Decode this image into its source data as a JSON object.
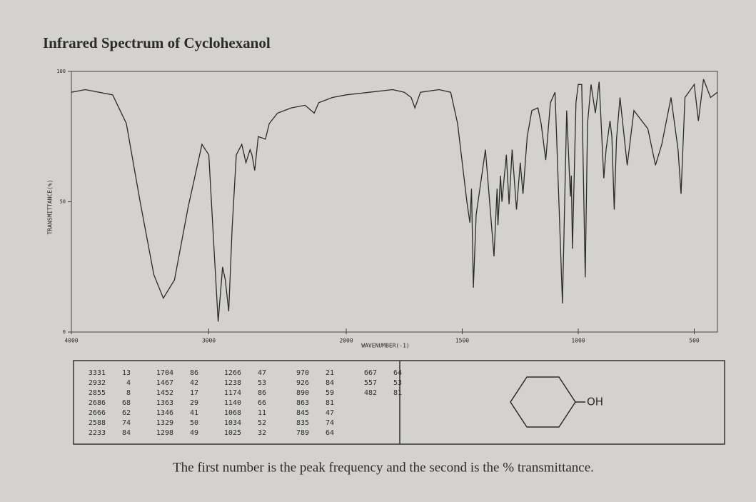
{
  "chart_data": {
    "type": "line",
    "title": "Infrared Spectrum of Cyclohexanol",
    "xlabel": "WAVENUMBER(-1)",
    "ylabel": "TRANSMITTANCE(%)",
    "xlim": [
      4000,
      400
    ],
    "x_scale_break": 2000,
    "xticks": [
      4000,
      3000,
      2000,
      1500,
      1000,
      500
    ],
    "ylim": [
      0,
      100
    ],
    "yticks": [
      0,
      50,
      100
    ],
    "color": "#2b2b2b",
    "x": [
      4000,
      3900,
      3700,
      3600,
      3500,
      3400,
      3331,
      3250,
      3150,
      3050,
      3000,
      2960,
      2932,
      2900,
      2880,
      2855,
      2830,
      2800,
      2760,
      2730,
      2700,
      2686,
      2666,
      2640,
      2588,
      2560,
      2500,
      2400,
      2300,
      2233,
      2200,
      2100,
      2000,
      1900,
      1800,
      1750,
      1720,
      1704,
      1680,
      1600,
      1550,
      1520,
      1480,
      1467,
      1460,
      1452,
      1440,
      1400,
      1363,
      1350,
      1346,
      1335,
      1329,
      1310,
      1298,
      1285,
      1266,
      1250,
      1238,
      1220,
      1200,
      1174,
      1160,
      1140,
      1120,
      1100,
      1068,
      1050,
      1034,
      1030,
      1025,
      1010,
      1000,
      985,
      970,
      960,
      945,
      926,
      910,
      890,
      880,
      863,
      855,
      845,
      835,
      820,
      789,
      760,
      700,
      667,
      640,
      600,
      570,
      557,
      540,
      500,
      482,
      460,
      430,
      400
    ],
    "values": [
      92,
      93,
      91,
      80,
      50,
      22,
      13,
      20,
      48,
      72,
      68,
      30,
      4,
      25,
      20,
      8,
      40,
      68,
      72,
      65,
      70,
      68,
      62,
      75,
      74,
      80,
      84,
      86,
      87,
      84,
      88,
      90,
      91,
      92,
      93,
      92,
      90,
      86,
      92,
      93,
      92,
      80,
      50,
      42,
      55,
      17,
      45,
      70,
      29,
      55,
      41,
      60,
      50,
      68,
      49,
      70,
      47,
      65,
      53,
      75,
      85,
      86,
      80,
      66,
      88,
      92,
      11,
      85,
      52,
      60,
      32,
      88,
      95,
      95,
      21,
      80,
      95,
      84,
      96,
      59,
      70,
      81,
      75,
      47,
      74,
      90,
      64,
      85,
      78,
      64,
      72,
      90,
      70,
      53,
      90,
      95,
      81,
      97,
      90,
      92
    ],
    "peaks": [
      [
        3331,
        13
      ],
      [
        2932,
        4
      ],
      [
        2855,
        8
      ],
      [
        2686,
        68
      ],
      [
        2666,
        62
      ],
      [
        2588,
        74
      ],
      [
        2233,
        84
      ],
      [
        1704,
        86
      ],
      [
        1467,
        42
      ],
      [
        1452,
        17
      ],
      [
        1363,
        29
      ],
      [
        1346,
        41
      ],
      [
        1329,
        50
      ],
      [
        1298,
        49
      ],
      [
        1266,
        47
      ],
      [
        1238,
        53
      ],
      [
        1174,
        86
      ],
      [
        1140,
        66
      ],
      [
        1068,
        11
      ],
      [
        1034,
        52
      ],
      [
        1025,
        32
      ],
      [
        970,
        21
      ],
      [
        926,
        84
      ],
      [
        890,
        59
      ],
      [
        863,
        81
      ],
      [
        845,
        47
      ],
      [
        835,
        74
      ],
      [
        789,
        64
      ],
      [
        667,
        64
      ],
      [
        557,
        53
      ],
      [
        482,
        81
      ]
    ],
    "structure_label": "OH",
    "footnote": "The first number is the peak frequency and the second is the % transmittance."
  }
}
